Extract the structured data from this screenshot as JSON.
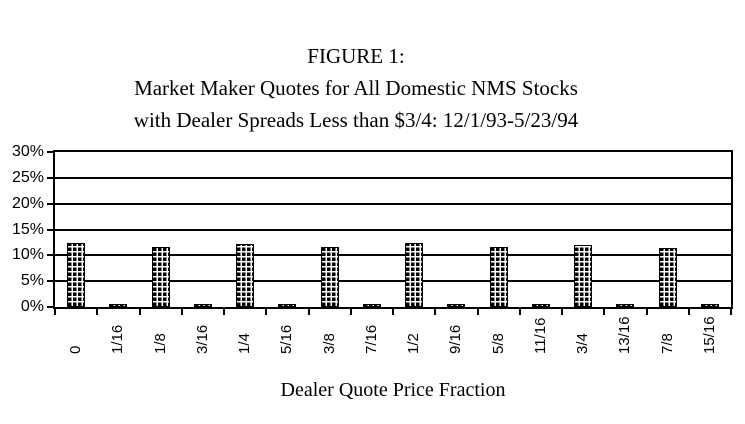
{
  "page": {
    "background": "#ffffff"
  },
  "title_lines": [
    "FIGURE 1:",
    "Market Maker Quotes for All Domestic NMS Stocks",
    "with Dealer Spreads Less than $3/4: 12/1/93-5/23/94"
  ],
  "chart_data": {
    "type": "bar",
    "title": "FIGURE 1: Market Maker Quotes for All Domestic NMS Stocks with Dealer Spreads Less than $3/4: 12/1/93-5/23/94",
    "categories": [
      "0",
      "1/16",
      "1/8",
      "3/16",
      "1/4",
      "5/16",
      "3/8",
      "7/16",
      "1/2",
      "9/16",
      "5/8",
      "11/16",
      "3/4",
      "13/16",
      "7/8",
      "15/16"
    ],
    "values": [
      12.4,
      0.4,
      11.7,
      0.4,
      12.1,
      0.4,
      11.6,
      0.4,
      12.4,
      0.4,
      11.6,
      0.4,
      12.0,
      0.4,
      11.5,
      0.4
    ],
    "xlabel": "Dealer Quote Price Fraction",
    "ylabel": "",
    "ylim": [
      0,
      30
    ],
    "yticks": [
      0,
      5,
      10,
      15,
      20,
      25,
      30
    ],
    "ytick_suffix": "%",
    "grid": "horizontal",
    "legend": "none",
    "bar_pattern": "small-grid-black-on-white",
    "colors": {
      "axis": "#000000",
      "bars": "#000000",
      "background": "#ffffff"
    }
  }
}
